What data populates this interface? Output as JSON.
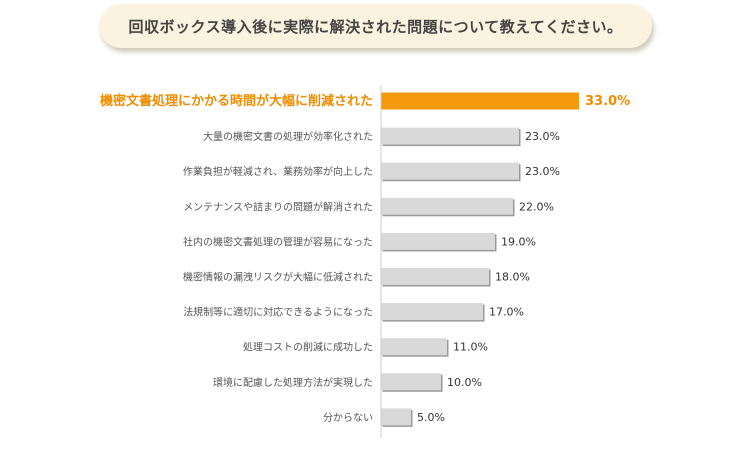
{
  "title": "回収ボックス導入後に実際に解決された問題について教えてください。",
  "colors": {
    "highlight_bar": "#f7990f",
    "highlight_text": "#f08c00",
    "bar": "#d9d9d9",
    "bar_shadow": "#9a9a9a",
    "label_text": "#555555",
    "value_text": "#333333",
    "title_bg": "#fbf3df"
  },
  "chart_data": {
    "type": "bar",
    "orientation": "horizontal",
    "unit": "%",
    "xlim": [
      0,
      100
    ],
    "grid": false,
    "categories": [
      "機密文書処理にかかる時間が大幅に削減された",
      "大量の機密文書の処理が効率化された",
      "作業負担が軽減され、業務効率が向上した",
      "メンテナンスや詰まりの問題が解消された",
      "社内の機密文書処理の管理が容易になった",
      "機密情報の漏洩リスクが大幅に低減された",
      "法規制等に適切に対応できるようになった",
      "処理コストの削減に成功した",
      "環境に配慮した処理方法が実現した",
      "分からない"
    ],
    "values": [
      33.0,
      23.0,
      23.0,
      22.0,
      19.0,
      18.0,
      17.0,
      11.0,
      10.0,
      5.0
    ],
    "value_labels": [
      "33.0%",
      "23.0%",
      "23.0%",
      "22.0%",
      "19.0%",
      "18.0%",
      "17.0%",
      "11.0%",
      "10.0%",
      "5.0%"
    ],
    "highlight_index": 0
  }
}
